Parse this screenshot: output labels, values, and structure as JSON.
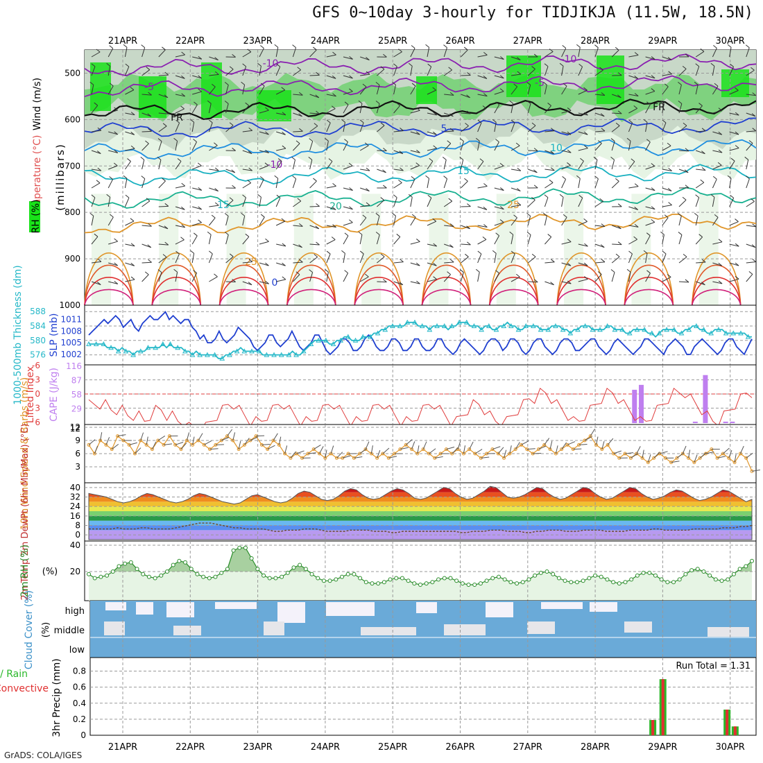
{
  "title": "GFS 0~10day 3-hourly for TIDJIKJA (11.5W, 18.5N)",
  "credit": "GrADS: COLA/IGES",
  "colors": {
    "rh_green_light": "#e6f4e4",
    "rh_green_mid": "#c8d8c8",
    "rh_green_bright": "#19e219",
    "slp_line": "#1f3fd0",
    "thickness_line": "#25b8c8",
    "lifted_index_line": "#e03c3c",
    "cape_bar": "#bf7fef",
    "wind_speed_line": "#e0962a",
    "rh2m_line": "#2a8c2a",
    "cloud_fill": "#6aaad8",
    "precip_total": "#2ab82a",
    "precip_convective": "#e03030"
  },
  "chart_data": [
    {
      "type": "heatmap",
      "panel": "upper-air",
      "ylabel_parts": [
        "Wind (m/s)",
        "Temperature (°C)",
        "RH (%)"
      ],
      "ylabel_units": "(millibars)",
      "x_ticks": [
        "21APR",
        "22APR",
        "23APR",
        "24APR",
        "25APR",
        "26APR",
        "27APR",
        "28APR",
        "29APR",
        "30APR"
      ],
      "y_ticks": [
        "500",
        "600",
        "700",
        "800",
        "900",
        "1000"
      ],
      "ylim": [
        1000,
        450
      ],
      "isotherm_labels": [
        "-10",
        "-5",
        "FR",
        "5",
        "10",
        "15",
        "20",
        "25",
        "-10",
        "-5",
        "FR",
        "-10",
        "15",
        "25",
        "0"
      ],
      "isotherms": [
        {
          "label": "-10",
          "pressure": 490,
          "color": "#8a20b0"
        },
        {
          "label": "-5",
          "pressure": 535,
          "color": "#8a20b0"
        },
        {
          "label": "FR",
          "pressure": 585,
          "color": "#111111"
        },
        {
          "label": "5",
          "pressure": 625,
          "color": "#1f3fd0"
        },
        {
          "label": "10",
          "pressure": 670,
          "color": "#1f8fe0"
        },
        {
          "label": "15",
          "pressure": 725,
          "color": "#18b0c0"
        },
        {
          "label": "20",
          "pressure": 775,
          "color": "#18b090"
        },
        {
          "label": "25",
          "pressure": 830,
          "color": "#e0962a"
        }
      ]
    },
    {
      "type": "line",
      "panel": "slp-thickness",
      "ylabel_left": "1000-500mb Thickness (dm)",
      "ylabel_right": "SLP (mb)",
      "left_ticks": [
        "576",
        "580",
        "584",
        "588"
      ],
      "right_ticks": [
        "1002",
        "1005",
        "1008",
        "1011"
      ],
      "series": [
        {
          "name": "SLP",
          "axis": "right",
          "ylim": [
            1000,
            1014
          ],
          "values": [
            1007,
            1008,
            1009,
            1010,
            1011,
            1010,
            1011,
            1012,
            1011,
            1009,
            1010,
            1011,
            1009,
            1008,
            1010,
            1011,
            1012,
            1011,
            1011,
            1012,
            1013,
            1011,
            1012,
            1011,
            1010,
            1011,
            1011,
            1009,
            1008,
            1006,
            1007,
            1005,
            1005,
            1006,
            1008,
            1006,
            1005,
            1006,
            1007,
            1009,
            1008,
            1007,
            1006,
            1004,
            1003,
            1004,
            1005,
            1007,
            1007,
            1005,
            1004,
            1005,
            1006,
            1008,
            1006,
            1004,
            1003,
            1004,
            1005,
            1007,
            1007,
            1005,
            1003,
            1002,
            1003,
            1004,
            1006,
            1006,
            1005,
            1003,
            1003,
            1004,
            1006,
            1007,
            1006,
            1004,
            1003,
            1003,
            1004,
            1006,
            1006,
            1005,
            1003,
            1003,
            1004,
            1006,
            1006,
            1004,
            1003,
            1003,
            1004,
            1006,
            1006,
            1004,
            1003,
            1002,
            1003,
            1005,
            1006,
            1005,
            1004,
            1003,
            1002,
            1003,
            1005,
            1006,
            1006,
            1005,
            1003,
            1004,
            1006,
            1006,
            1005,
            1003,
            1002,
            1003,
            1005,
            1006,
            1006,
            1004,
            1003,
            1002,
            1003,
            1005,
            1006,
            1006,
            1005,
            1003,
            1003,
            1004,
            1005,
            1006,
            1006,
            1004,
            1003,
            1002,
            1003,
            1005,
            1006,
            1005,
            1004,
            1003,
            1002,
            1003,
            1004,
            1006,
            1006,
            1005,
            1004,
            1003,
            1002,
            1004,
            1005,
            1006,
            1005,
            1004,
            1002,
            1002,
            1004,
            1005,
            1006,
            1005,
            1004,
            1003,
            1002,
            1003,
            1005,
            1006,
            1006,
            1004,
            1003,
            1002,
            1004,
            1006
          ]
        },
        {
          "name": "Thickness",
          "axis": "left",
          "ylim": [
            574,
            589
          ],
          "values": [
            579,
            579,
            579,
            579,
            579,
            578,
            578,
            578,
            577,
            578,
            577,
            577,
            576,
            577,
            577,
            577,
            578,
            578,
            578,
            578,
            579,
            578,
            579,
            578,
            578,
            578,
            577,
            577,
            576,
            577,
            576,
            576,
            576,
            576,
            576,
            575,
            575,
            576,
            576,
            577,
            577,
            578,
            577,
            577,
            577,
            577,
            577,
            576,
            576,
            576,
            576,
            576,
            576,
            576,
            576,
            577,
            576,
            576,
            577,
            578,
            579,
            580,
            580,
            580,
            580,
            579,
            579,
            580,
            580,
            581,
            581,
            580,
            580,
            580,
            581,
            581,
            581,
            582,
            582,
            583,
            583,
            584,
            584,
            584,
            584,
            584,
            585,
            585,
            585,
            584,
            584,
            584,
            583,
            584,
            584,
            584,
            584,
            583,
            584,
            584,
            585,
            585,
            585,
            584,
            584,
            584,
            583,
            584,
            584,
            583,
            583,
            584,
            584,
            585,
            584,
            584,
            583,
            583,
            584,
            584,
            584,
            584,
            583,
            583,
            583,
            584,
            584,
            584,
            583,
            583,
            582,
            583,
            583,
            584,
            584,
            584,
            583,
            583,
            583,
            583,
            584,
            584,
            583,
            583,
            583,
            582,
            582,
            583,
            583,
            583,
            583,
            582,
            582,
            581,
            582,
            583,
            583,
            583,
            583,
            582,
            582,
            583,
            583,
            584,
            584,
            583,
            583,
            582,
            582,
            583,
            583,
            583,
            582,
            582,
            582,
            582,
            582,
            582,
            581,
            581
          ]
        }
      ]
    },
    {
      "type": "bar",
      "panel": "stability",
      "ylabel_left": "Lifted Index",
      "ylabel_right": "CAPE (J/kg)",
      "left_ticks": [
        "-6",
        "-3",
        "0",
        "3",
        "6"
      ],
      "right_ticks": [
        "29",
        "58",
        "87",
        "116"
      ],
      "lifted_index": [
        -1,
        -1,
        -1,
        -1,
        -2,
        -2,
        -2,
        -3,
        -3,
        -3,
        -4,
        -3,
        -2,
        -2,
        -3,
        -3,
        -4,
        -4,
        -5,
        -5,
        -5,
        -5,
        -4,
        -3,
        -2,
        -1,
        -1,
        -2,
        -3,
        -4,
        -4,
        -4,
        -3,
        -2,
        -1,
        -1,
        -2,
        -3,
        -4,
        -4,
        -4,
        -3,
        -2,
        -1,
        -1,
        -2,
        -3,
        -4,
        -4,
        -4,
        -3,
        -2,
        -1,
        -1,
        -2,
        -3,
        -4,
        -4,
        -4,
        -3,
        -2,
        -1,
        -1,
        -2,
        -3,
        -4,
        -4,
        -3,
        -2,
        -1,
        -1,
        -2,
        -3,
        -4,
        -4,
        -4,
        -3,
        -2,
        -1,
        0,
        0,
        1,
        1,
        0,
        -1,
        -2,
        -3,
        -4,
        -4,
        -3,
        -2,
        -1,
        0,
        1,
        1,
        0,
        -1,
        -2,
        -3,
        -4,
        -4,
        -3,
        -2,
        -1,
        0,
        1,
        1,
        1,
        0,
        -1,
        -2,
        -3,
        -4,
        -4,
        -3,
        -2,
        -1,
        0,
        1,
        1
      ],
      "cape_bars": [
        {
          "day": 8.05,
          "value": 68
        },
        {
          "day": 8.15,
          "value": 78
        },
        {
          "day": 8.95,
          "value": 3
        },
        {
          "day": 9.1,
          "value": 98
        },
        {
          "day": 9.4,
          "value": 3
        },
        {
          "day": 9.5,
          "value": 3
        }
      ]
    },
    {
      "type": "line",
      "panel": "10m-wind",
      "ylabel": "10m Wind Speed & Barbs (m/s)",
      "y_ticks": [
        "3",
        "6",
        "9",
        "12"
      ],
      "ylim": [
        0,
        12
      ],
      "values": [
        8,
        6,
        9,
        8,
        7,
        10,
        9,
        8,
        6,
        9,
        8,
        7,
        9,
        8,
        10,
        8,
        7,
        9,
        8,
        9,
        8,
        7,
        8,
        9,
        10,
        9,
        7,
        8,
        9,
        10,
        8,
        7,
        9,
        8,
        6,
        5,
        6,
        5,
        6,
        7,
        6,
        5,
        6,
        5,
        5,
        6,
        5,
        6,
        7,
        6,
        5,
        6,
        5,
        6,
        7,
        8,
        7,
        6,
        7,
        6,
        5,
        6,
        7,
        6,
        7,
        6,
        7,
        6,
        5,
        6,
        7,
        6,
        5,
        6,
        7,
        8,
        7,
        6,
        7,
        8,
        7,
        6,
        7,
        8,
        7,
        8,
        9,
        10,
        8,
        7,
        8,
        6,
        5,
        6,
        5,
        6,
        5,
        4,
        5,
        6,
        5,
        4,
        5,
        6,
        5,
        4,
        5,
        6,
        7,
        5,
        6,
        5,
        4,
        6,
        5,
        2
      ]
    },
    {
      "type": "area",
      "panel": "2m-temp",
      "ylabel": "2m Temp 2m DewPt (6hr Min/Max) (°C)",
      "y_ticks": [
        "0",
        "8",
        "16",
        "24",
        "32",
        "40"
      ],
      "ylim": [
        -4,
        44
      ],
      "temperature": [
        35,
        34,
        33,
        32,
        30,
        28,
        27,
        28,
        30,
        33,
        35,
        34,
        32,
        30,
        28,
        27,
        28,
        30,
        33,
        35,
        34,
        32,
        30,
        28,
        27,
        26,
        27,
        30,
        33,
        34,
        32,
        30,
        28,
        27,
        28,
        31,
        35,
        37,
        36,
        33,
        30,
        29,
        30,
        33,
        37,
        39,
        38,
        34,
        31,
        30,
        31,
        34,
        37,
        39,
        38,
        35,
        31,
        30,
        31,
        34,
        37,
        40,
        39,
        35,
        32,
        30,
        31,
        34,
        37,
        41,
        40,
        36,
        32,
        31,
        32,
        34,
        37,
        40,
        39,
        35,
        32,
        30,
        31,
        34,
        37,
        40,
        39,
        35,
        32,
        30,
        31,
        34,
        37,
        40,
        39,
        35,
        32,
        30,
        31,
        33,
        36,
        38,
        37,
        34,
        31,
        29,
        30,
        32,
        35,
        38,
        37,
        34,
        31,
        28,
        30
      ],
      "dewpoint": [
        5,
        5,
        5,
        5,
        5,
        6,
        5,
        5,
        5,
        6,
        6,
        5,
        5,
        5,
        5,
        6,
        7,
        8,
        9,
        10,
        10,
        10,
        9,
        8,
        7,
        6,
        6,
        5,
        5,
        5,
        5,
        4,
        3,
        3,
        4,
        4,
        4,
        5,
        5,
        5,
        4,
        3,
        3,
        3,
        3,
        4,
        4,
        4,
        4,
        3,
        3,
        3,
        2,
        2,
        3,
        3,
        3,
        3,
        3,
        3,
        3,
        3,
        3,
        3,
        2,
        2,
        3,
        3,
        3,
        4,
        4,
        4,
        3,
        3,
        3,
        2,
        2,
        3,
        3,
        4,
        4,
        4,
        3,
        3,
        3,
        4,
        4,
        4,
        4,
        3,
        3,
        3,
        3,
        4,
        4,
        4,
        4,
        5,
        5,
        4,
        4,
        4,
        4,
        4,
        5,
        5,
        5,
        5,
        5,
        6,
        6,
        6,
        7,
        7,
        8
      ]
    },
    {
      "type": "area",
      "panel": "2m-rh",
      "ylabel": "2m RH (%)",
      "y_ticks": [
        "20",
        "40"
      ],
      "ylim": [
        0,
        40
      ],
      "values": [
        18,
        15,
        16,
        17,
        20,
        24,
        26,
        27,
        22,
        18,
        16,
        15,
        17,
        20,
        25,
        28,
        27,
        22,
        18,
        16,
        15,
        16,
        19,
        22,
        36,
        38,
        38,
        30,
        22,
        17,
        15,
        15,
        16,
        19,
        23,
        25,
        22,
        18,
        15,
        13,
        13,
        14,
        16,
        18,
        18,
        15,
        12,
        11,
        11,
        12,
        14,
        15,
        15,
        13,
        11,
        10,
        11,
        12,
        14,
        15,
        15,
        13,
        11,
        10,
        10,
        11,
        13,
        15,
        16,
        14,
        12,
        11,
        12,
        14,
        17,
        19,
        20,
        18,
        15,
        13,
        12,
        12,
        13,
        15,
        17,
        16,
        14,
        12,
        11,
        12,
        14,
        17,
        19,
        19,
        17,
        14,
        12,
        12,
        14,
        18,
        21,
        22,
        20,
        17,
        14,
        13,
        14,
        18,
        22,
        24,
        28
      ]
    },
    {
      "type": "heatmap",
      "panel": "cloud-cover",
      "ylabel": "Cloud Cover (%)",
      "levels": [
        "high",
        "middle",
        "low"
      ],
      "note": "mostly full coverage with intermittent clear gaps"
    },
    {
      "type": "bar",
      "panel": "precip",
      "ylabel": "3hr Precip (mm)",
      "legend_left": "Total / Rain",
      "legend_right": "Convective",
      "run_total_label": "Run Total = 1.31",
      "y_ticks": [
        "0",
        "0.2",
        "0.4",
        "0.6",
        "0.8"
      ],
      "ylim": [
        0,
        0.9
      ],
      "bars": [
        {
          "day": 8.1,
          "total": 0.19,
          "convective": 0.19
        },
        {
          "day": 8.25,
          "total": 0.7,
          "convective": 0.7
        },
        {
          "day": 9.2,
          "total": 0.32,
          "convective": 0.32
        },
        {
          "day": 9.32,
          "total": 0.11,
          "convective": 0.11
        }
      ]
    }
  ]
}
